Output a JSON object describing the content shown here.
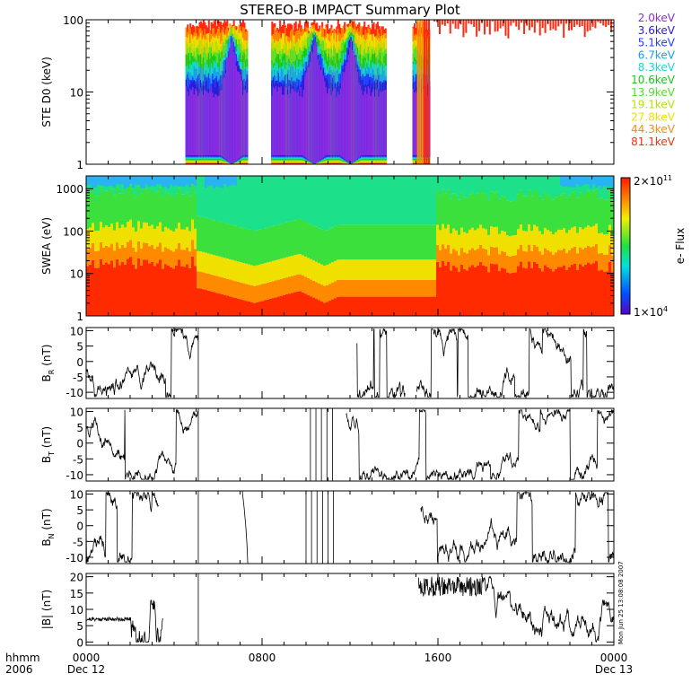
{
  "title": "STEREO-B IMPACT Summary Plot",
  "footer": {
    "time_label": "hhmm",
    "year": "2006",
    "ticks": [
      "0000",
      "0800",
      "1600",
      "0000"
    ],
    "date_start": "Dec 12",
    "date_end": "Dec 13"
  },
  "timestamp": "Mon Jun 25 13:08:08 2007",
  "colors": {
    "energy_channels": [
      "#8a2be2",
      "#2a1bd8",
      "#1f3cff",
      "#18a0f0",
      "#12d8d0",
      "#18c818",
      "#50e030",
      "#b8e000",
      "#f0e000",
      "#ff8c00",
      "#ff2a10"
    ]
  },
  "chart_data": [
    {
      "panel": "ste",
      "type": "line",
      "ylabel": "STE D0 (keV)",
      "yscale": "log",
      "ylim": [
        1,
        100
      ],
      "yticks": [
        "1",
        "10",
        "100"
      ],
      "xlim_hours": [
        0,
        24
      ],
      "legend": [
        "2.0keV",
        "3.6keV",
        "5.1keV",
        "6.7keV",
        "8.3keV",
        "10.6keV",
        "13.9keV",
        "19.1keV",
        "27.8keV",
        "44.3keV",
        "81.1keV"
      ],
      "legend_position": "right",
      "data_gaps_hours": [
        [
          0,
          4.5
        ],
        [
          15.7,
          24
        ]
      ]
    },
    {
      "panel": "swea",
      "type": "heatmap",
      "ylabel": "SWEA (eV)",
      "yscale": "log",
      "ylim": [
        1,
        2000
      ],
      "yticks": [
        "1",
        "10",
        "100",
        "1000"
      ],
      "colorbar_label": "e- Flux",
      "colorbar_max": "2×10",
      "colorbar_max_exp": "11",
      "colorbar_min": "1×10",
      "colorbar_min_exp": "4"
    },
    {
      "panel": "br",
      "type": "line",
      "ylabel_base": "B",
      "ylabel_sub": "R",
      "ylabel_unit": "(nT)",
      "ylim": [
        -12,
        11
      ],
      "yticks": [
        "10",
        "5",
        "0",
        "-5",
        "-10"
      ]
    },
    {
      "panel": "bt",
      "type": "line",
      "ylabel_base": "B",
      "ylabel_sub": "T",
      "ylabel_unit": "(nT)",
      "ylim": [
        -12,
        11
      ],
      "yticks": [
        "10",
        "5",
        "0",
        "-5",
        "-10"
      ]
    },
    {
      "panel": "bn",
      "type": "line",
      "ylabel_base": "B",
      "ylabel_sub": "N",
      "ylabel_unit": "(nT)",
      "ylim": [
        -12,
        11
      ],
      "yticks": [
        "10",
        "5",
        "0",
        "-5",
        "-10"
      ]
    },
    {
      "panel": "bmag",
      "type": "line",
      "ylabel": "|B| (nT)",
      "ylim": [
        -1,
        21
      ],
      "yticks": [
        "20",
        "15",
        "10",
        "5",
        "0"
      ]
    }
  ]
}
